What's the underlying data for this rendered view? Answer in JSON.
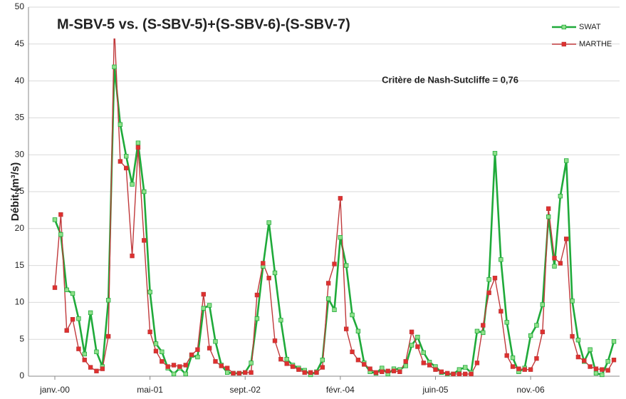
{
  "chart_data": {
    "type": "line",
    "title": "M-SBV-5 vs. (S-SBV-5)+(S-SBV-6)-(S-SBV-7)",
    "y_label": "Débit (m³/s)",
    "annotation": "Critère de Nash-Sutcliffe = 0,76",
    "categories": [
      "janv.-00",
      null,
      null,
      null,
      null,
      null,
      null,
      null,
      null,
      null,
      null,
      null,
      null,
      null,
      null,
      null,
      "mai-01",
      null,
      null,
      null,
      null,
      null,
      null,
      null,
      null,
      null,
      null,
      null,
      null,
      null,
      null,
      null,
      "sept.-02",
      null,
      null,
      null,
      null,
      null,
      null,
      null,
      null,
      null,
      null,
      null,
      null,
      null,
      null,
      null,
      "févr.-04",
      null,
      null,
      null,
      null,
      null,
      null,
      null,
      null,
      null,
      null,
      null,
      null,
      null,
      null,
      null,
      "juin-05",
      null,
      null,
      null,
      null,
      null,
      null,
      null,
      null,
      null,
      null,
      null,
      null,
      null,
      null,
      null,
      "nov.-06",
      null,
      null,
      null,
      null,
      null,
      null,
      null,
      null,
      null,
      null,
      null,
      null,
      null,
      null
    ],
    "series": [
      {
        "name": "SWAT",
        "color": "#1faa3a",
        "marker_fill": "#8fe08a",
        "values": [
          21.2,
          19.2,
          11.7,
          11.2,
          7.8,
          3.0,
          8.6,
          3.3,
          1.3,
          10.3,
          41.9,
          34.1,
          29.8,
          26.0,
          31.6,
          25.0,
          11.4,
          4.4,
          3.3,
          1.1,
          0.3,
          1.1,
          0.3,
          2.8,
          2.6,
          9.2,
          9.6,
          4.7,
          1.5,
          0.5,
          0.4,
          0.4,
          0.5,
          1.8,
          7.8,
          14.9,
          20.8,
          14.0,
          7.6,
          2.3,
          1.5,
          1.1,
          0.8,
          0.2,
          0.6,
          2.2,
          10.5,
          9.0,
          18.8,
          15.0,
          8.3,
          6.1,
          1.8,
          0.6,
          0.4,
          1.1,
          0.3,
          1.0,
          0.9,
          1.4,
          4.2,
          5.3,
          3.2,
          1.9,
          1.3,
          0.5,
          0.3,
          0.3,
          0.9,
          1.2,
          0.5,
          6.1,
          5.9,
          13.1,
          30.2,
          15.8,
          7.3,
          2.5,
          0.6,
          1.1,
          5.5,
          6.9,
          9.7,
          21.6,
          14.9,
          24.4,
          29.2,
          10.2,
          4.9,
          2.0,
          3.6,
          0.4,
          0.2,
          2.0,
          4.7
        ]
      },
      {
        "name": "MARTHE",
        "color": "#c0393b",
        "marker_fill": "#e0302e",
        "values": [
          12.0,
          21.9,
          6.2,
          7.7,
          3.7,
          2.2,
          1.2,
          0.7,
          1.0,
          5.4,
          47.3,
          29.1,
          28.2,
          16.3,
          31.0,
          18.4,
          6.0,
          3.4,
          2.0,
          1.3,
          1.5,
          1.3,
          1.5,
          2.9,
          3.6,
          11.1,
          3.8,
          2.0,
          1.4,
          1.1,
          0.4,
          0.4,
          0.5,
          0.5,
          11.0,
          15.3,
          13.3,
          4.8,
          2.3,
          1.7,
          1.3,
          0.9,
          0.5,
          0.5,
          0.5,
          1.2,
          12.6,
          15.2,
          24.1,
          6.4,
          3.3,
          2.2,
          1.6,
          1.0,
          0.5,
          0.6,
          0.7,
          0.7,
          0.6,
          2.0,
          6.0,
          4.0,
          1.8,
          1.5,
          0.9,
          0.6,
          0.4,
          0.3,
          0.3,
          0.3,
          0.3,
          1.8,
          6.9,
          11.3,
          13.3,
          8.8,
          2.8,
          1.3,
          1.0,
          0.9,
          0.9,
          2.4,
          6.0,
          22.7,
          16.0,
          15.3,
          18.6,
          5.4,
          2.6,
          2.1,
          1.3,
          1.0,
          0.9,
          0.8,
          2.2
        ]
      }
    ],
    "ylim": [
      0,
      50
    ],
    "yticks": [
      0,
      5,
      10,
      15,
      20,
      25,
      30,
      35,
      40,
      45,
      50
    ],
    "grid": true,
    "legend": "top-right"
  }
}
